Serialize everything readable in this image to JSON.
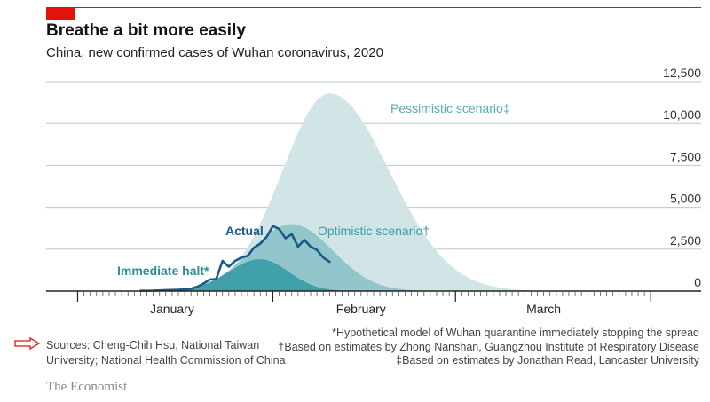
{
  "header": {
    "title": "Breathe a bit more easily",
    "subtitle": "China, new confirmed cases of Wuhan coronavirus, 2020"
  },
  "chart_data": {
    "type": "area",
    "title": "Breathe a bit more easily",
    "subtitle": "China, new confirmed cases of Wuhan coronavirus, 2020",
    "x_axis": {
      "unit": "days since 1 January 2020",
      "range": [
        -5,
        99
      ],
      "month_labels": [
        {
          "label": "January",
          "x": 15
        },
        {
          "label": "February",
          "x": 45
        },
        {
          "label": "March",
          "x": 74
        }
      ]
    },
    "y_axis": {
      "range": [
        0,
        12500
      ],
      "ticks": [
        "12,500",
        "10,000",
        "7,500",
        "5,000",
        "2,500",
        "0"
      ],
      "tick_values": [
        12500,
        10000,
        7500,
        5000,
        2500,
        0
      ],
      "position": "right",
      "grid": true
    },
    "series": [
      {
        "name": "Pessimistic scenario",
        "label": "Pessimistic scenario‡",
        "type": "area",
        "color": "#cfe4e6",
        "model": {
          "peak_day": 40,
          "peak_value": 11800,
          "sigma_left": 7.5,
          "sigma_right": 9.5,
          "start_day": 8,
          "end_day": 80
        }
      },
      {
        "name": "Optimistic scenario",
        "label": "Optimistic scenario†",
        "type": "area",
        "color": "#8fc4c8",
        "model": {
          "peak_day": 34,
          "peak_value": 4000,
          "sigma_left": 6.5,
          "sigma_right": 6.5,
          "start_day": 10,
          "end_day": 56
        }
      },
      {
        "name": "Immediate halt",
        "label": "Immediate halt*",
        "type": "area",
        "color": "#3b9ea6",
        "model": {
          "peak_day": 29,
          "peak_value": 1900,
          "sigma_left": 5.0,
          "sigma_right": 4.5,
          "start_day": 10,
          "end_day": 45
        }
      },
      {
        "name": "Actual",
        "label": "Actual",
        "type": "line",
        "color": "#1a5a8a",
        "x": [
          10,
          12,
          14,
          16,
          18,
          19,
          20,
          21,
          22,
          23,
          24,
          25,
          26,
          27,
          28,
          29,
          30,
          31,
          32,
          33,
          34,
          35,
          36,
          37,
          38,
          39,
          40
        ],
        "values": [
          15,
          25,
          60,
          80,
          140,
          260,
          450,
          690,
          720,
          1800,
          1450,
          1800,
          2000,
          2100,
          2590,
          2830,
          3230,
          3880,
          3700,
          3150,
          3400,
          2650,
          3050,
          2650,
          2450,
          2000,
          1750
        ]
      }
    ]
  },
  "footer": {
    "sources": "Sources: Cheng-Chih Hsu, National Taiwan University; National Health Commission of China",
    "note_halt": "*Hypothetical model of Wuhan quarantine immediately stopping the spread",
    "note_optimistic": "†Based on estimates by Zhong Nanshan, Guangzhou Institute of Respiratory Disease",
    "note_pessimistic": "‡Based on estimates by Jonathan Read, Lancaster University",
    "brand": "The Economist"
  }
}
